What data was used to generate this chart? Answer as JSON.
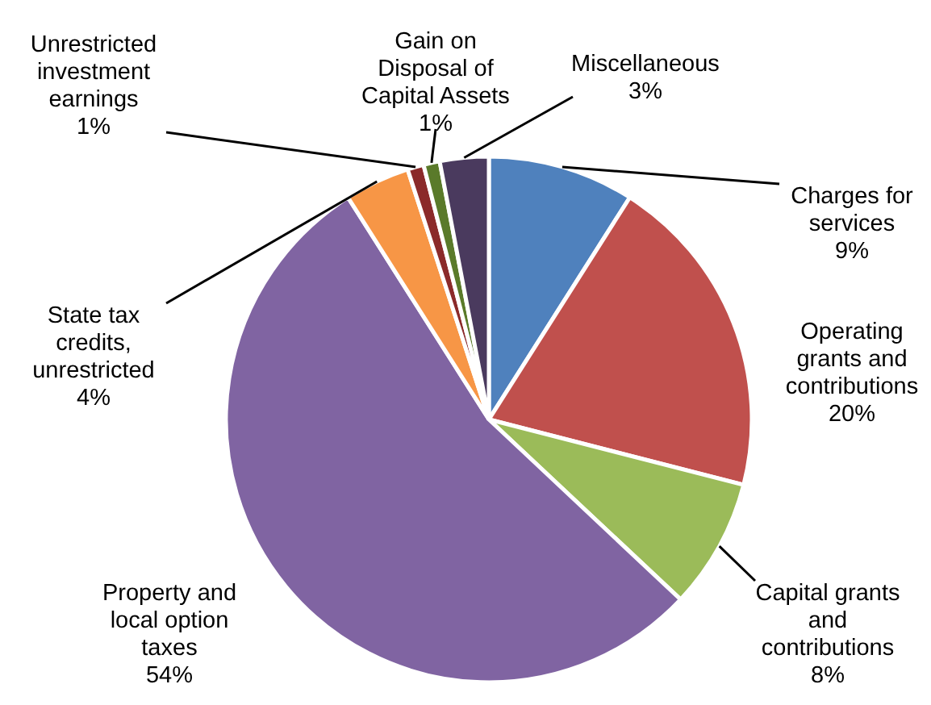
{
  "chart_data": {
    "type": "pie",
    "categories": [
      "Charges for services",
      "Operating grants and contributions",
      "Capital grants and contributions",
      "Property and local option taxes",
      "State tax credits, unrestricted",
      "Unrestricted investment earnings",
      "Gain on Disposal of Capital Assets",
      "Miscellaneous"
    ],
    "values": [
      9,
      20,
      8,
      54,
      4,
      1,
      1,
      3
    ],
    "value_labels": [
      "9%",
      "20%",
      "8%",
      "54%",
      "4%",
      "1%",
      "1%",
      "3%"
    ],
    "colors": [
      "#4f81bd",
      "#c0504d",
      "#9bbb59",
      "#8064a2",
      "#f79646",
      "#8b2a2a",
      "#5a7a2a",
      "#4a3a5e"
    ],
    "legend": false
  }
}
